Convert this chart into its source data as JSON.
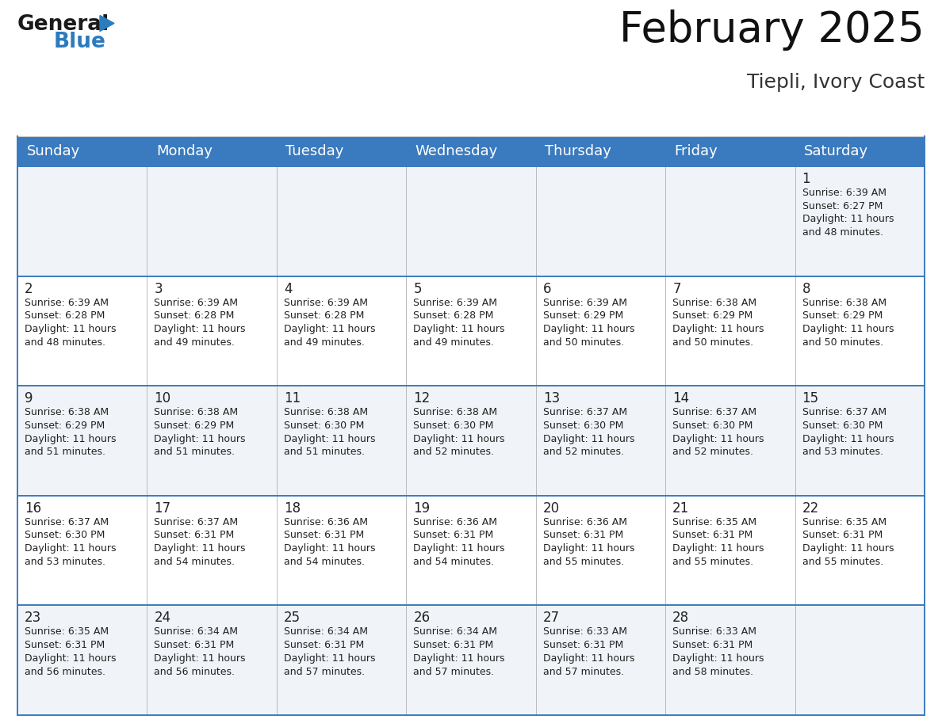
{
  "title": "February 2025",
  "subtitle": "Tiepli, Ivory Coast",
  "header_color": "#3a7abf",
  "header_text_color": "#ffffff",
  "cell_bg_row0": "#f0f4f8",
  "cell_bg_row1": "#ffffff",
  "border_color": "#3a7abf",
  "sep_color": "#bbbbbb",
  "day_headers": [
    "Sunday",
    "Monday",
    "Tuesday",
    "Wednesday",
    "Thursday",
    "Friday",
    "Saturday"
  ],
  "title_fontsize": 38,
  "subtitle_fontsize": 18,
  "header_fontsize": 13,
  "day_num_fontsize": 12,
  "cell_fontsize": 9,
  "days": [
    {
      "day": 1,
      "col": 6,
      "row": 0,
      "sunrise": "6:39 AM",
      "sunset": "6:27 PM",
      "daylight": "11 hours and 48 minutes."
    },
    {
      "day": 2,
      "col": 0,
      "row": 1,
      "sunrise": "6:39 AM",
      "sunset": "6:28 PM",
      "daylight": "11 hours and 48 minutes."
    },
    {
      "day": 3,
      "col": 1,
      "row": 1,
      "sunrise": "6:39 AM",
      "sunset": "6:28 PM",
      "daylight": "11 hours and 49 minutes."
    },
    {
      "day": 4,
      "col": 2,
      "row": 1,
      "sunrise": "6:39 AM",
      "sunset": "6:28 PM",
      "daylight": "11 hours and 49 minutes."
    },
    {
      "day": 5,
      "col": 3,
      "row": 1,
      "sunrise": "6:39 AM",
      "sunset": "6:28 PM",
      "daylight": "11 hours and 49 minutes."
    },
    {
      "day": 6,
      "col": 4,
      "row": 1,
      "sunrise": "6:39 AM",
      "sunset": "6:29 PM",
      "daylight": "11 hours and 50 minutes."
    },
    {
      "day": 7,
      "col": 5,
      "row": 1,
      "sunrise": "6:38 AM",
      "sunset": "6:29 PM",
      "daylight": "11 hours and 50 minutes."
    },
    {
      "day": 8,
      "col": 6,
      "row": 1,
      "sunrise": "6:38 AM",
      "sunset": "6:29 PM",
      "daylight": "11 hours and 50 minutes."
    },
    {
      "day": 9,
      "col": 0,
      "row": 2,
      "sunrise": "6:38 AM",
      "sunset": "6:29 PM",
      "daylight": "11 hours and 51 minutes."
    },
    {
      "day": 10,
      "col": 1,
      "row": 2,
      "sunrise": "6:38 AM",
      "sunset": "6:29 PM",
      "daylight": "11 hours and 51 minutes."
    },
    {
      "day": 11,
      "col": 2,
      "row": 2,
      "sunrise": "6:38 AM",
      "sunset": "6:30 PM",
      "daylight": "11 hours and 51 minutes."
    },
    {
      "day": 12,
      "col": 3,
      "row": 2,
      "sunrise": "6:38 AM",
      "sunset": "6:30 PM",
      "daylight": "11 hours and 52 minutes."
    },
    {
      "day": 13,
      "col": 4,
      "row": 2,
      "sunrise": "6:37 AM",
      "sunset": "6:30 PM",
      "daylight": "11 hours and 52 minutes."
    },
    {
      "day": 14,
      "col": 5,
      "row": 2,
      "sunrise": "6:37 AM",
      "sunset": "6:30 PM",
      "daylight": "11 hours and 52 minutes."
    },
    {
      "day": 15,
      "col": 6,
      "row": 2,
      "sunrise": "6:37 AM",
      "sunset": "6:30 PM",
      "daylight": "11 hours and 53 minutes."
    },
    {
      "day": 16,
      "col": 0,
      "row": 3,
      "sunrise": "6:37 AM",
      "sunset": "6:30 PM",
      "daylight": "11 hours and 53 minutes."
    },
    {
      "day": 17,
      "col": 1,
      "row": 3,
      "sunrise": "6:37 AM",
      "sunset": "6:31 PM",
      "daylight": "11 hours and 54 minutes."
    },
    {
      "day": 18,
      "col": 2,
      "row": 3,
      "sunrise": "6:36 AM",
      "sunset": "6:31 PM",
      "daylight": "11 hours and 54 minutes."
    },
    {
      "day": 19,
      "col": 3,
      "row": 3,
      "sunrise": "6:36 AM",
      "sunset": "6:31 PM",
      "daylight": "11 hours and 54 minutes."
    },
    {
      "day": 20,
      "col": 4,
      "row": 3,
      "sunrise": "6:36 AM",
      "sunset": "6:31 PM",
      "daylight": "11 hours and 55 minutes."
    },
    {
      "day": 21,
      "col": 5,
      "row": 3,
      "sunrise": "6:35 AM",
      "sunset": "6:31 PM",
      "daylight": "11 hours and 55 minutes."
    },
    {
      "day": 22,
      "col": 6,
      "row": 3,
      "sunrise": "6:35 AM",
      "sunset": "6:31 PM",
      "daylight": "11 hours and 55 minutes."
    },
    {
      "day": 23,
      "col": 0,
      "row": 4,
      "sunrise": "6:35 AM",
      "sunset": "6:31 PM",
      "daylight": "11 hours and 56 minutes."
    },
    {
      "day": 24,
      "col": 1,
      "row": 4,
      "sunrise": "6:34 AM",
      "sunset": "6:31 PM",
      "daylight": "11 hours and 56 minutes."
    },
    {
      "day": 25,
      "col": 2,
      "row": 4,
      "sunrise": "6:34 AM",
      "sunset": "6:31 PM",
      "daylight": "11 hours and 57 minutes."
    },
    {
      "day": 26,
      "col": 3,
      "row": 4,
      "sunrise": "6:34 AM",
      "sunset": "6:31 PM",
      "daylight": "11 hours and 57 minutes."
    },
    {
      "day": 27,
      "col": 4,
      "row": 4,
      "sunrise": "6:33 AM",
      "sunset": "6:31 PM",
      "daylight": "11 hours and 57 minutes."
    },
    {
      "day": 28,
      "col": 5,
      "row": 4,
      "sunrise": "6:33 AM",
      "sunset": "6:31 PM",
      "daylight": "11 hours and 58 minutes."
    }
  ],
  "logo_color1": "#1a1a1a",
  "logo_color2": "#2b7bbf",
  "logo_triangle_color": "#2b7bbf"
}
